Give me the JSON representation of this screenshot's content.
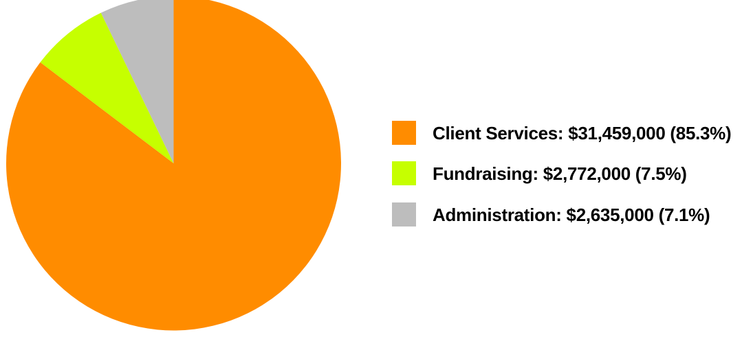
{
  "chart_data": {
    "type": "pie",
    "slices": [
      {
        "label": "Client Services",
        "amount": "$31,459,000",
        "value": 31459000,
        "percent": "85.3%",
        "color": "#ff8c00"
      },
      {
        "label": "Fundraising",
        "amount": "$2,772,000",
        "value": 2772000,
        "percent": "7.5%",
        "color": "#c6ff00"
      },
      {
        "label": "Administration",
        "amount": "$2,635,000",
        "value": 2635000,
        "percent": "7.1%",
        "color": "#bdbdbd"
      }
    ],
    "start_angle": "12 o'clock",
    "direction": "clockwise",
    "legend_position": "right",
    "legend": [
      "Client Services: $31,459,000 (85.3%)",
      "Fundraising: $2,772,000 (7.5%)",
      "Administration: $2,635,000 (7.1%)"
    ]
  }
}
